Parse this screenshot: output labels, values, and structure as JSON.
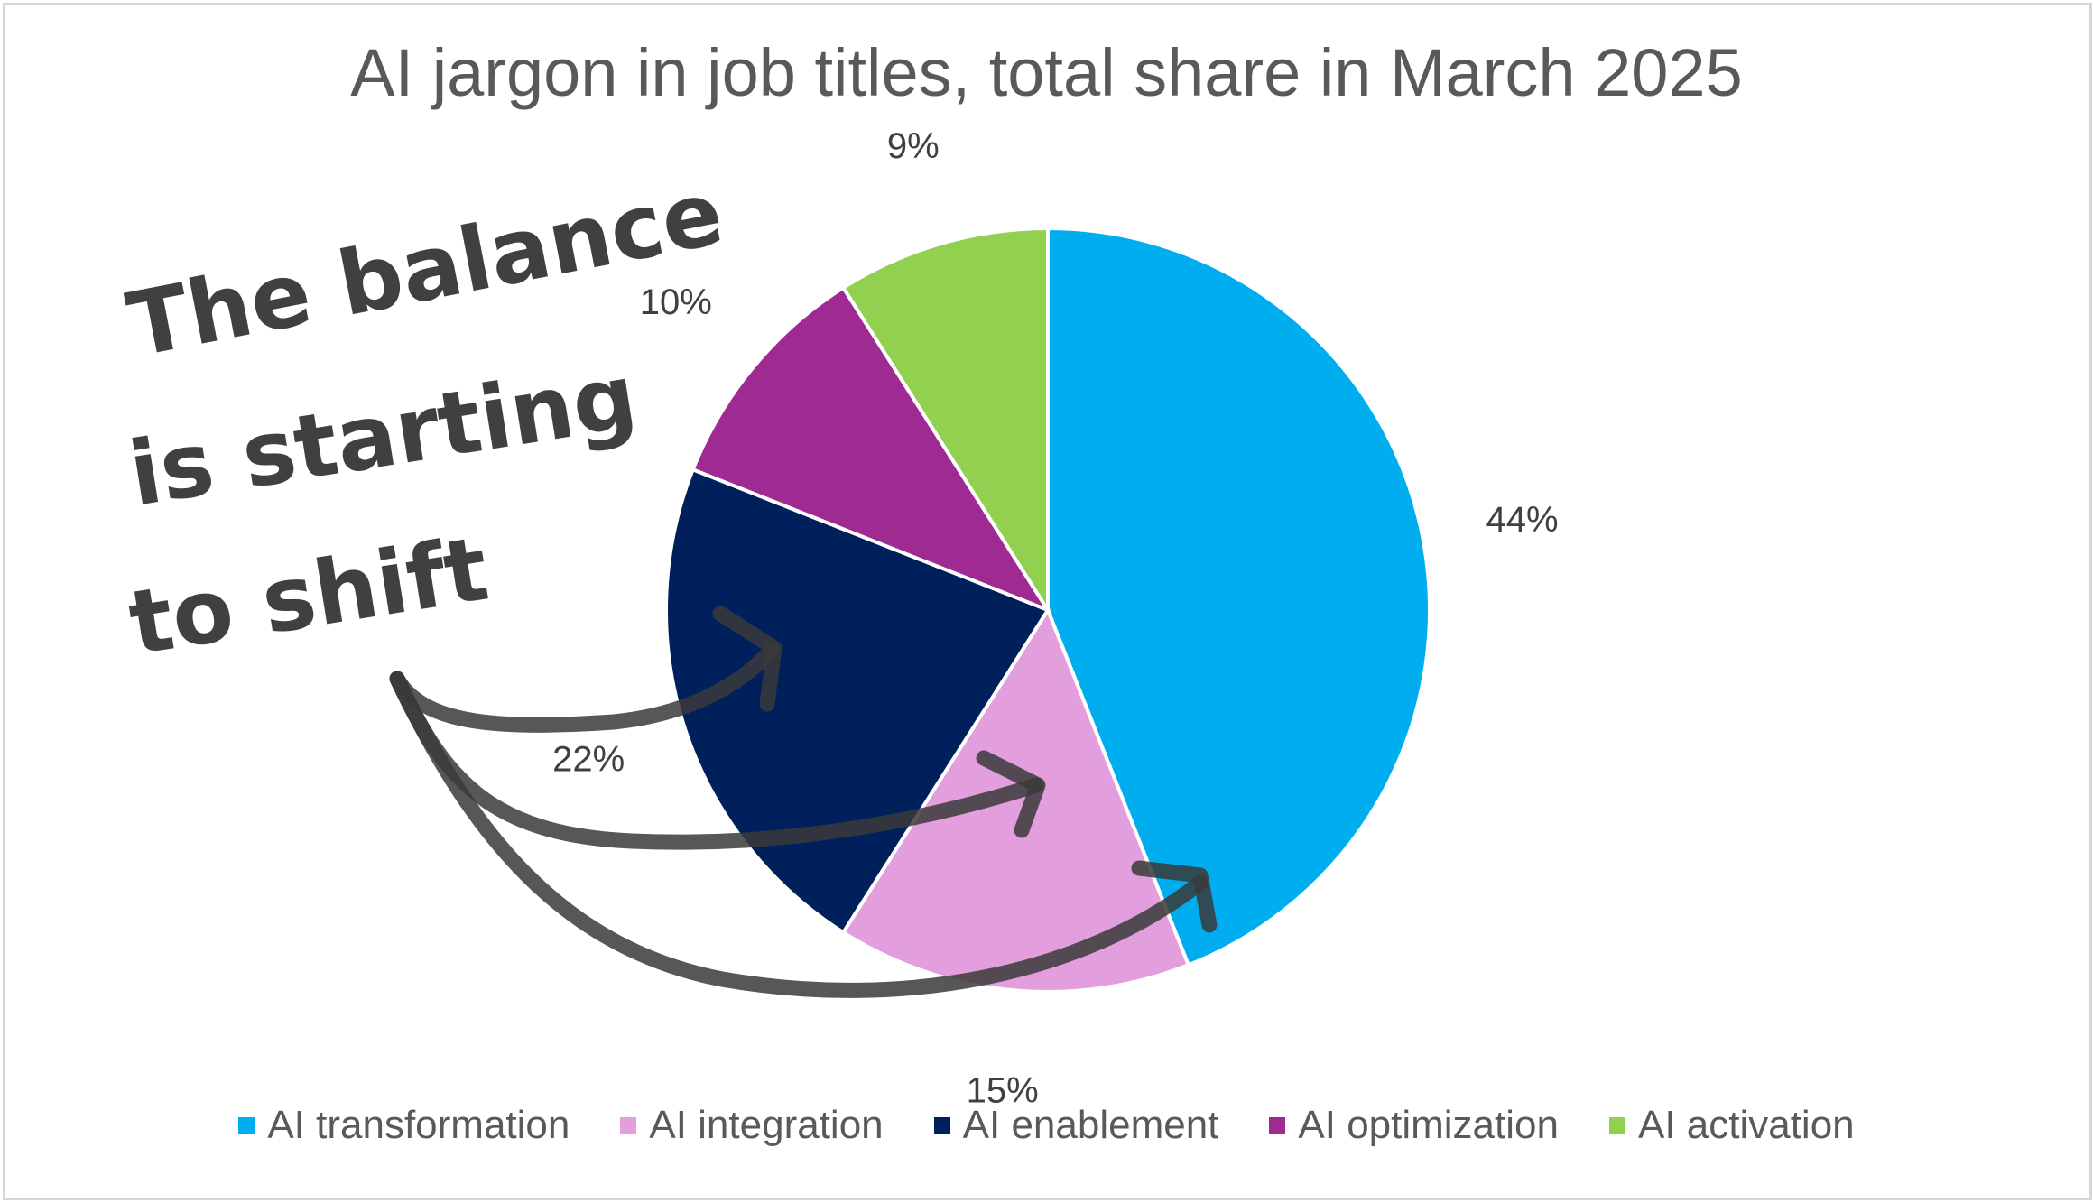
{
  "chart_data": {
    "type": "pie",
    "title": "AI jargon in job titles, total share in March 2025",
    "categories": [
      "AI transformation",
      "AI integration",
      "AI enablement",
      "AI optimization",
      "AI activation"
    ],
    "values": [
      44,
      15,
      22,
      10,
      9
    ],
    "data_labels": [
      "44%",
      "15%",
      "22%",
      "10%",
      "9%"
    ],
    "colors": [
      "#00AEEF",
      "#E39FDD",
      "#00205C",
      "#9E2A92",
      "#92D050"
    ],
    "legend_placement": "bottom",
    "start_angle_deg": 0,
    "direction": "clockwise",
    "annotation": {
      "lines": [
        "The balance",
        "is starting",
        "to shift"
      ],
      "color": "#404040"
    }
  }
}
